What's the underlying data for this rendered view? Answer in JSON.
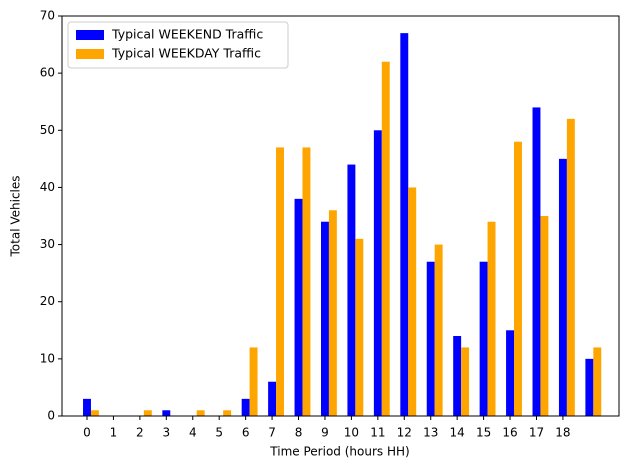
{
  "chart_data": {
    "type": "bar",
    "xlabel": "Time Period (hours HH)",
    "ylabel": "Total Vehicles",
    "categories": [
      "0",
      "1",
      "2",
      "3",
      "4",
      "5",
      "6",
      "7",
      "8",
      "9",
      "10",
      "11",
      "12",
      "13",
      "14",
      "15",
      "16",
      "17",
      "18",
      null
    ],
    "series": [
      {
        "name": "Typical WEEKEND Traffic",
        "color": "#0000ff",
        "values": [
          3,
          0,
          0,
          1,
          0,
          0,
          3,
          6,
          38,
          34,
          44,
          50,
          67,
          27,
          14,
          27,
          15,
          54,
          45,
          10
        ]
      },
      {
        "name": "Typical WEEKDAY Traffic",
        "color": "#ffa500",
        "values": [
          1,
          0,
          1,
          0,
          1,
          1,
          12,
          47,
          47,
          36,
          31,
          62,
          40,
          30,
          12,
          34,
          48,
          35,
          52,
          12
        ]
      }
    ],
    "ylim": [
      0,
      70
    ],
    "yticks": [
      0,
      10,
      20,
      30,
      40,
      50,
      60,
      70
    ],
    "grid": false,
    "legend": "upper left"
  }
}
